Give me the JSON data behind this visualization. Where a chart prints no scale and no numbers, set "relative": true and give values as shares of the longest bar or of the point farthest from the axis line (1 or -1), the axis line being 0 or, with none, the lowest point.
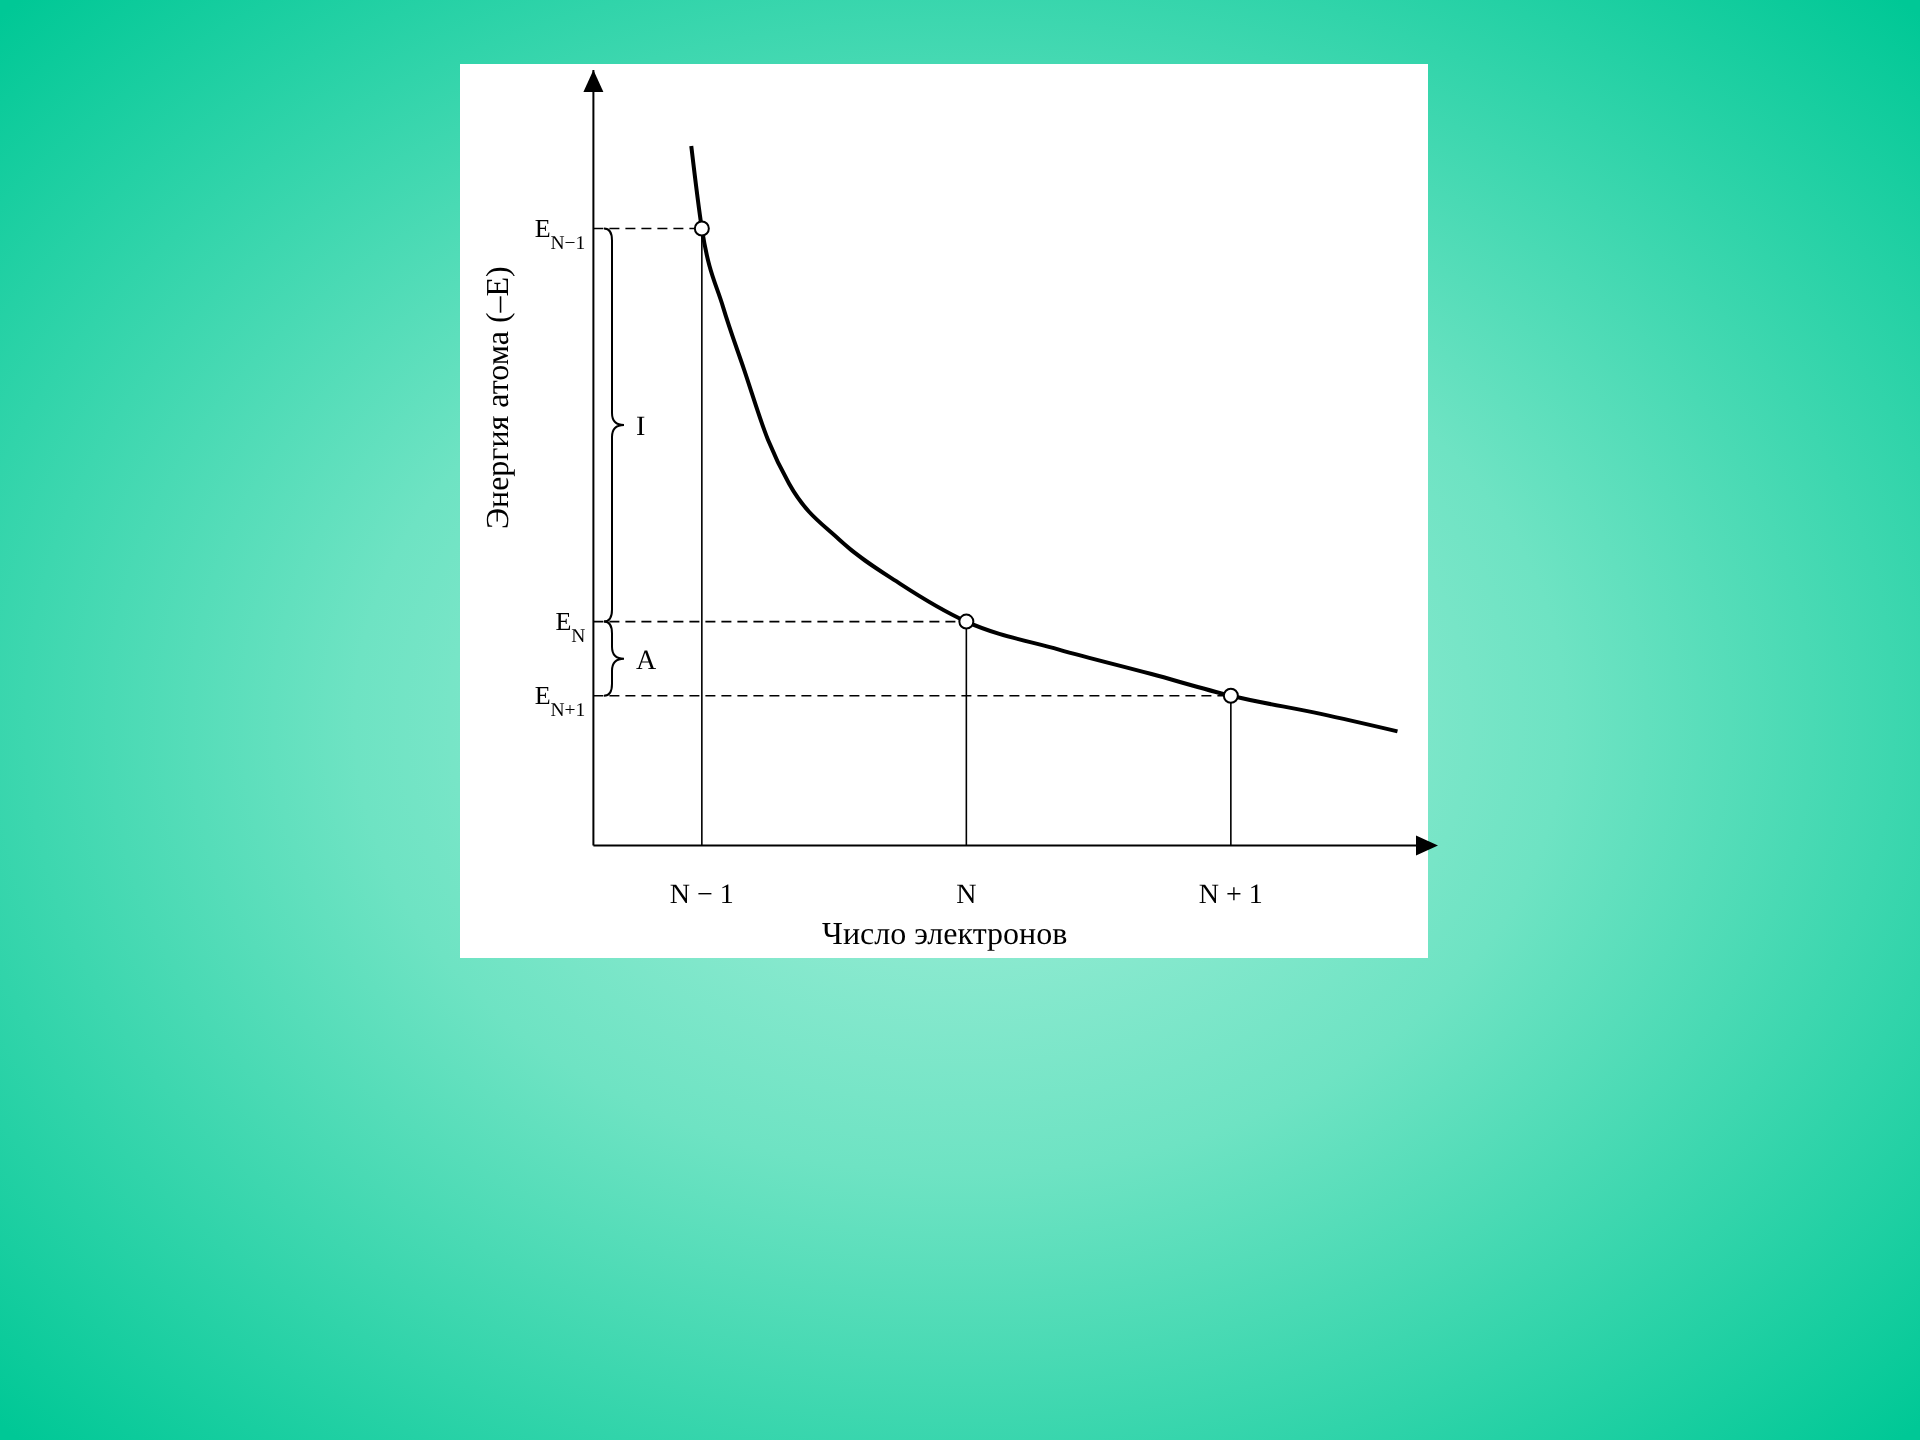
{
  "chart_data": {
    "type": "line",
    "xlabel": "Число электронов",
    "ylabel": "Энергия атома (–E)",
    "relative": true,
    "xlim": [
      -1.41,
      1.7
    ],
    "xticks": [
      {
        "value": -1,
        "label": "N − 1"
      },
      {
        "value": 0,
        "label": "N"
      },
      {
        "value": 1,
        "label": "N + 1"
      }
    ],
    "series": [
      {
        "color": "#000000",
        "marker": "none",
        "x": [
          -1.04,
          -1,
          -0.92,
          -0.84,
          -0.75,
          -0.67,
          -0.48,
          -0.25,
          0,
          0.35,
          0.7,
          1,
          1.34,
          1.63
        ],
        "values": [
          1,
          0.882,
          0.77,
          0.68,
          0.58,
          0.517,
          0.437,
          0.374,
          0.32,
          0.28,
          0.245,
          0.214,
          0.188,
          0.163
        ]
      },
      {
        "type": "scatter",
        "color": "#000000",
        "marker": "circle",
        "x": [
          -1,
          0,
          1
        ],
        "values": [
          0.882,
          0.32,
          0.214
        ]
      }
    ],
    "ref_lines": [
      {
        "axis": "y",
        "value": 0.882,
        "label": "E$_{N−1}$",
        "line_style": "dashed"
      },
      {
        "axis": "y",
        "value": 0.32,
        "label": "E$_{N}$",
        "line_style": "dashed"
      },
      {
        "axis": "y",
        "value": 0.214,
        "label": "E$_{N+1}$",
        "line_style": "dashed"
      },
      {
        "axis": "x",
        "value": -1,
        "line_style": "solid"
      },
      {
        "axis": "x",
        "value": 0,
        "line_style": "solid"
      },
      {
        "axis": "x",
        "value": 1,
        "line_style": "solid"
      }
    ],
    "annotations": [
      "I",
      "A"
    ]
  }
}
